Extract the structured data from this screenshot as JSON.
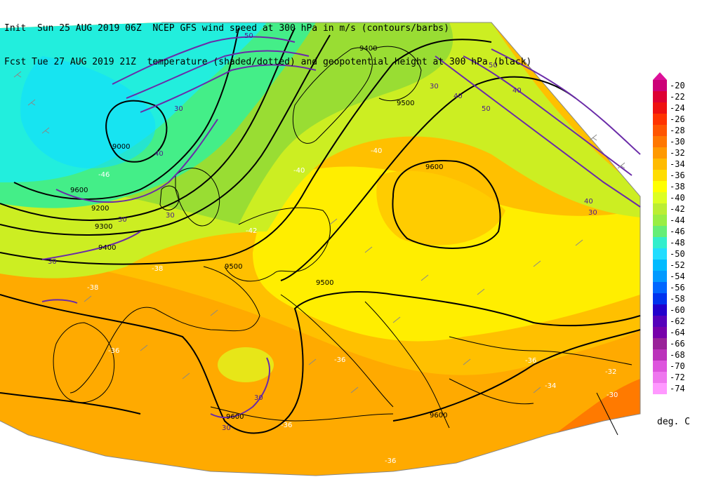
{
  "header": {
    "line1": "Init  Sun 25 AUG 2019 06Z  NCEP GFS wind speed at 300 hPa in m/s (contours/barbs)",
    "line2": "Fcst Tue 27 AUG 2019 21Z  temperature (shaded/dotted) and geopotential height at 300 hPa (black)"
  },
  "scale": {
    "labels": [
      "-20",
      "-22",
      "-24",
      "-26",
      "-28",
      "-30",
      "-32",
      "-34",
      "-36",
      "-38",
      "-40",
      "-42",
      "-44",
      "-46",
      "-48",
      "-50",
      "-52",
      "-54",
      "-56",
      "-58",
      "-60",
      "-62",
      "-64",
      "-66",
      "-68",
      "-70",
      "-72",
      "-74"
    ],
    "colors": [
      "#cc0077",
      "#dd0033",
      "#ee1111",
      "#ff3300",
      "#ff5500",
      "#ff7700",
      "#ff9900",
      "#ffbb00",
      "#ffdd00",
      "#ffff00",
      "#ddff22",
      "#bbee33",
      "#99ee44",
      "#66ee77",
      "#33eecc",
      "#22ddff",
      "#00bbff",
      "#0099ff",
      "#0066ff",
      "#0033ee",
      "#2200cc",
      "#5500bb",
      "#7700aa",
      "#992299",
      "#bb33bb",
      "#dd55dd",
      "#ee77ee",
      "#ff99ff"
    ],
    "units": "deg. C"
  },
  "map": {
    "height_labels": [
      "9000",
      "9200",
      "9300",
      "9400",
      "9500",
      "9600",
      "9500",
      "9400",
      "9500",
      "9600",
      "9600",
      "9600"
    ],
    "wind_labels": [
      "30",
      "30",
      "40",
      "50",
      "30",
      "40",
      "50",
      "50",
      "40",
      "30",
      "30",
      "30",
      "30",
      "40",
      "30"
    ],
    "temp_labels": [
      "-46",
      "-40",
      "-40",
      "-38",
      "-36",
      "-36",
      "-36",
      "-36",
      "-34",
      "-32",
      "-30",
      "-36",
      "-42",
      "-38"
    ]
  }
}
